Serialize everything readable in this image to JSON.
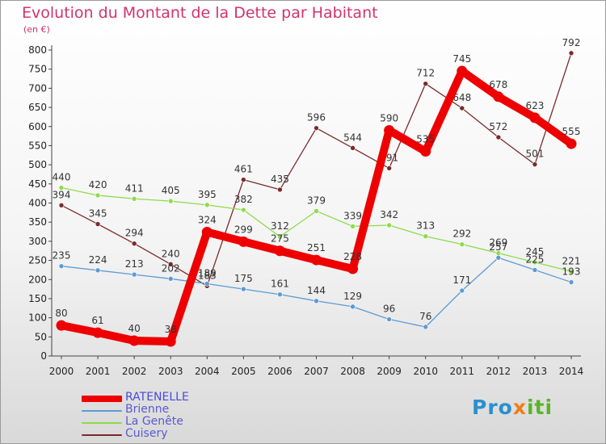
{
  "chart_data": {
    "type": "line",
    "title": "Evolution du Montant de la Dette par Habitant",
    "subtitle": "(en €)",
    "x": [
      "2000",
      "2001",
      "2002",
      "2003",
      "2004",
      "2005",
      "2006",
      "2007",
      "2008",
      "2009",
      "2010",
      "2011",
      "2012",
      "2013",
      "2014"
    ],
    "ylim": [
      0,
      800
    ],
    "yticks": [
      0,
      50,
      100,
      150,
      200,
      250,
      300,
      350,
      400,
      450,
      500,
      550,
      600,
      650,
      700,
      750,
      800
    ],
    "grid": false,
    "legend_position": "bottom-left",
    "series": [
      {
        "name": "RATENELLE",
        "color": "#ee0000",
        "values": [
          80,
          61,
          40,
          38,
          324,
          299,
          275,
          251,
          228,
          590,
          535,
          745,
          678,
          623,
          555
        ]
      },
      {
        "name": "Brienne",
        "color": "#5b9bd5",
        "values": [
          235,
          224,
          213,
          202,
          189,
          175,
          161,
          144,
          129,
          96,
          76,
          171,
          257,
          225,
          193
        ]
      },
      {
        "name": "La Genête",
        "color": "#8ddc4a",
        "values": [
          440,
          420,
          411,
          405,
          395,
          382,
          312,
          379,
          339,
          342,
          313,
          292,
          269,
          245,
          221
        ]
      },
      {
        "name": "Cuisery",
        "color": "#7b2a2a",
        "values": [
          394,
          345,
          294,
          240,
          183,
          461,
          435,
          596,
          544,
          491,
          712,
          648,
          572,
          501,
          792
        ]
      }
    ]
  },
  "logo": {
    "part1": "Pro",
    "part2": "x",
    "part3": "iti"
  }
}
